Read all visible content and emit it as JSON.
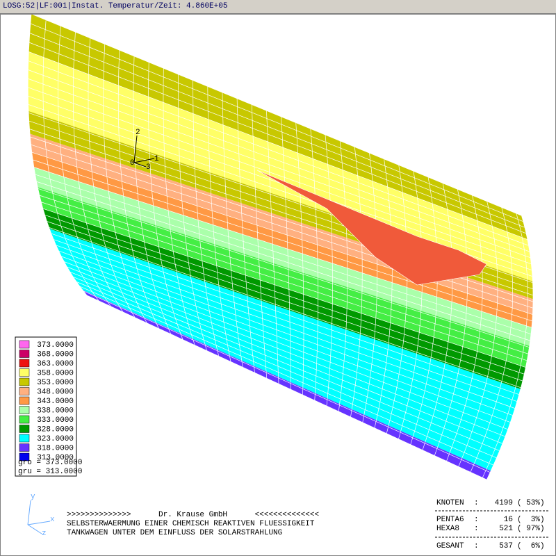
{
  "header": {
    "title": "LOSG:52|LF:001|Instat. Temperatur/Zeit: 4.860E+05"
  },
  "triad": {
    "labels": [
      "2",
      "1",
      "3",
      "0"
    ]
  },
  "legend": {
    "entries": [
      {
        "value": "373.0000",
        "color": "#ff66ee"
      },
      {
        "value": "368.0000",
        "color": "#cc0066"
      },
      {
        "value": "363.0000",
        "color": "#ee1111"
      },
      {
        "value": "358.0000",
        "color": "#ffff66"
      },
      {
        "value": "353.0000",
        "color": "#c8c800"
      },
      {
        "value": "348.0000",
        "color": "#ffb080"
      },
      {
        "value": "343.0000",
        "color": "#ff9944"
      },
      {
        "value": "338.0000",
        "color": "#aaffaa"
      },
      {
        "value": "333.0000",
        "color": "#44ee44"
      },
      {
        "value": "328.0000",
        "color": "#009900"
      },
      {
        "value": "323.0000",
        "color": "#00ffff"
      },
      {
        "value": "318.0000",
        "color": "#6633ff"
      },
      {
        "value": "313.0000",
        "color": "#0000ee"
      }
    ],
    "gro": "gro = 373.0000",
    "gru": "gru = 313.0000"
  },
  "axes": {
    "y": "y",
    "x": "x",
    "z": "z"
  },
  "footer": {
    "lines": [
      ">>>>>>>>>>>>>>      Dr. Krause GmbH      <<<<<<<<<<<<<<",
      "SELBSTERWAERMUNG EINER CHEMISCH REAKTIVEN FLUESSIGKEIT",
      "TANKWAGEN UNTER DEM EINFLUSS DER SOLARSTRAHLUNG"
    ]
  },
  "stats": {
    "rows": [
      {
        "label": "KNOTEN",
        "sep": ":",
        "count": "4199",
        "percent": "( 53%)"
      },
      {
        "label": "PENTA6",
        "sep": ":",
        "count": "16",
        "percent": "(  3%)"
      },
      {
        "label": "HEXA8",
        "sep": ":",
        "count": "521",
        "percent": "( 97%)"
      },
      {
        "label": "GESANT",
        "sep": ":",
        "count": "537",
        "percent": "(  6%)"
      }
    ]
  }
}
